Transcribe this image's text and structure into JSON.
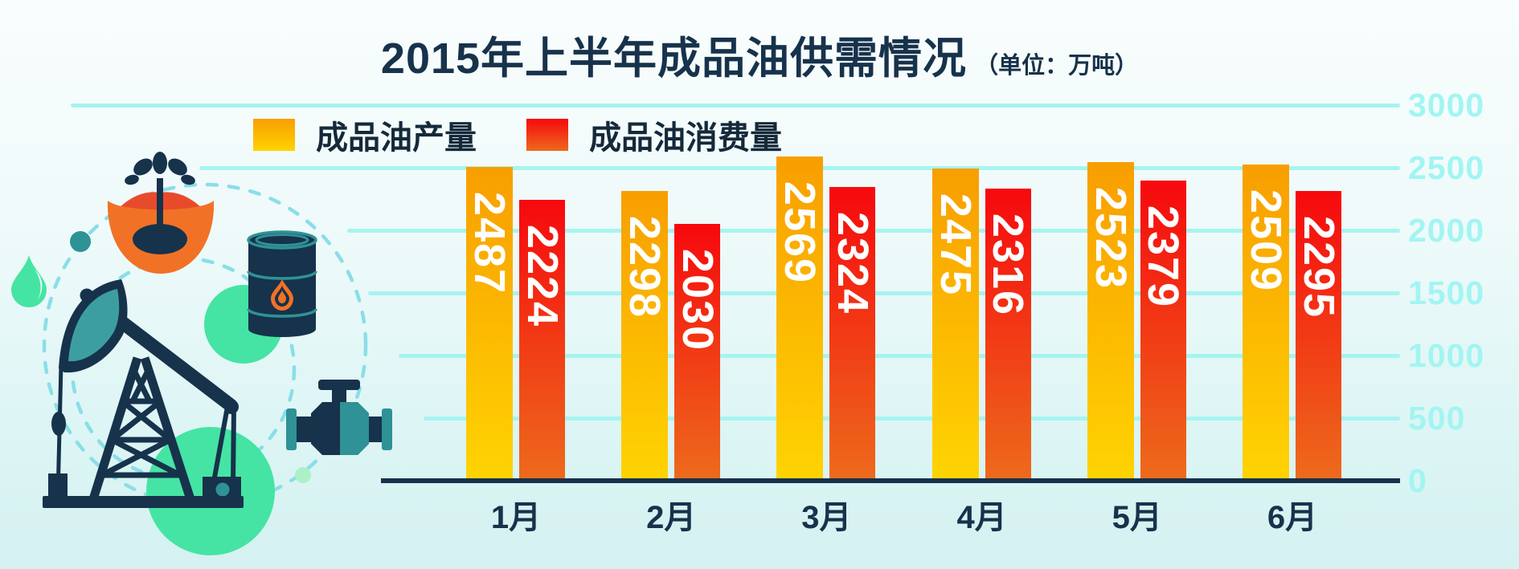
{
  "title": {
    "text": "2015年上半年成品油供需情况",
    "unit": "（单位：万吨）"
  },
  "legend": [
    {
      "label": "成品油产量"
    },
    {
      "label": "成品油消费量"
    }
  ],
  "chart_data": {
    "type": "bar",
    "categories": [
      "1月",
      "2月",
      "3月",
      "4月",
      "5月",
      "6月"
    ],
    "series": [
      {
        "name": "成品油产量",
        "values": [
          2487,
          2298,
          2569,
          2475,
          2523,
          2509
        ]
      },
      {
        "name": "成品油消费量",
        "values": [
          2224,
          2030,
          2324,
          2316,
          2379,
          2295
        ]
      }
    ],
    "title": "2015年上半年成品油供需情况",
    "unit": "万吨",
    "xlabel": "",
    "ylabel": "",
    "ylim": [
      0,
      3000
    ],
    "yticks": [
      3000,
      2500,
      2000,
      1500,
      1000,
      500,
      0
    ],
    "grid": true,
    "axis_side": "right",
    "legend_position": "top-left",
    "value_labels": "rotated-inside-bar-top"
  },
  "colors": {
    "production_top": "#F89E00",
    "production_bottom": "#FFD302",
    "consumption_top": "#F6090E",
    "consumption_bottom": "#ED6A1C",
    "gridline": "#A6F4F0",
    "axis_text": "#A2F5F2",
    "ink": "#17324B",
    "teal": "#2E9296",
    "teal_light_dash": "#8ADEE8",
    "green": "#45E4A4",
    "green_light": "#ACF0C8",
    "orange": "#F17226",
    "red_splash": "#E84B2B"
  },
  "illustration": {
    "icons": [
      "oil-gusher-icon",
      "water-drop-icon",
      "oil-barrel-icon",
      "valve-icon",
      "pump-jack-icon"
    ]
  }
}
